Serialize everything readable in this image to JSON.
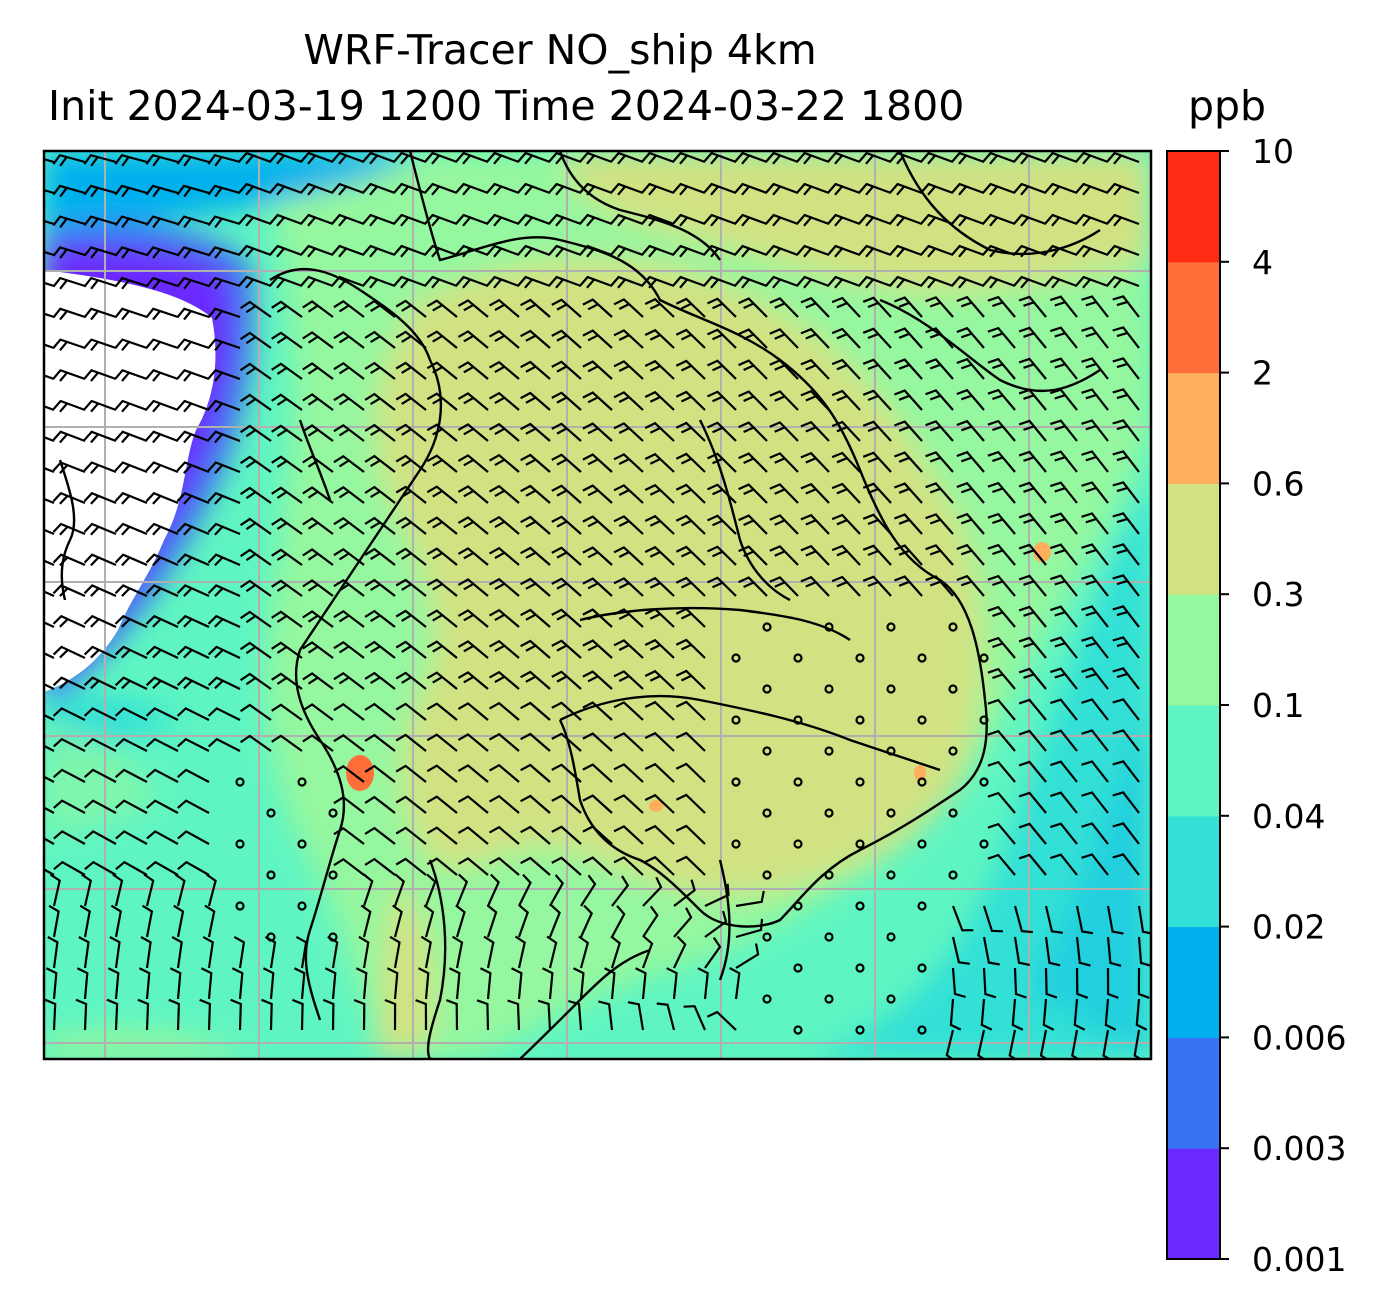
{
  "title": {
    "line1": "WRF-Tracer NO_ship 4km",
    "line2": "Init 2024-03-19 1200 Time 2024-03-22 1800"
  },
  "colorbar": {
    "units": "ppb",
    "levels": [
      "0.001",
      "0.003",
      "0.006",
      "0.02",
      "0.04",
      "0.1",
      "0.3",
      "0.6",
      "2",
      "4",
      "10"
    ],
    "colors": [
      "#6a2aff",
      "#3874f2",
      "#00b0ee",
      "#33e0d6",
      "#5ff5c2",
      "#95f79f",
      "#d1e283",
      "#ffaf5c",
      "#ff6e38",
      "#ff2b12"
    ]
  },
  "map": {
    "background_levels": {
      "ocean_far": "#33e0d6",
      "ocean_near": "#5ff5c2",
      "land": "#95f79f",
      "land_high": "#d1e283",
      "west_low": "#3874f2",
      "west_lowest": "#6a2aff",
      "no_data": "#ffffff"
    },
    "gridlines": true,
    "wind_barbs": true
  }
}
